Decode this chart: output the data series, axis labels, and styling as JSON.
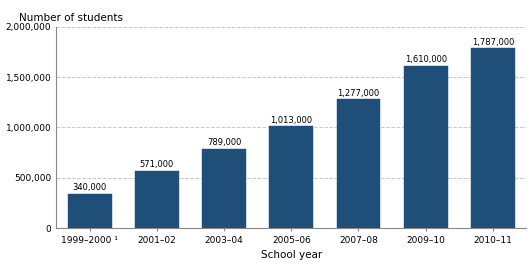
{
  "categories": [
    "1999–2000 ¹",
    "2001–02",
    "2003–04",
    "2005–06",
    "2007–08",
    "2009–10",
    "2010–11"
  ],
  "values": [
    340000,
    571000,
    789000,
    1013000,
    1277000,
    1610000,
    1787000
  ],
  "bar_color": "#1f4e79",
  "ylabel": "Number of students",
  "xlabel": "School year",
  "ylim": [
    0,
    2000000
  ],
  "yticks": [
    0,
    500000,
    1000000,
    1500000,
    2000000
  ],
  "ytick_labels": [
    "0",
    "500,000",
    "1,000,000",
    "1,500,000",
    "2,000,000"
  ],
  "value_labels": [
    "340,000",
    "571,000",
    "789,000",
    "1,013,000",
    "1,277,000",
    "1,610,000",
    "1,787,000"
  ],
  "grid_color": "#c8c8c8",
  "bar_edge_color": "#1f4e79",
  "axis_label_fontsize": 7.5,
  "tick_fontsize": 6.5,
  "value_label_fontsize": 6.0,
  "ylabel_fontsize": 7.5
}
